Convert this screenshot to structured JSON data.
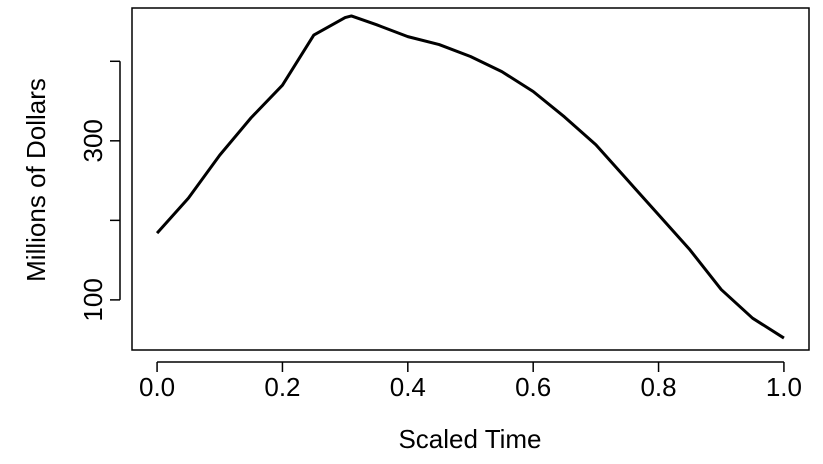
{
  "chart_data": {
    "type": "line",
    "xlabel": "Scaled Time",
    "ylabel": "Millions of Dollars",
    "x": [
      0,
      0.05,
      0.1,
      0.15,
      0.2,
      0.25,
      0.3,
      0.31,
      0.35,
      0.4,
      0.45,
      0.5,
      0.55,
      0.6,
      0.65,
      0.7,
      0.75,
      0.8,
      0.85,
      0.9,
      0.95,
      1.0
    ],
    "series": [
      {
        "color": "#000000",
        "values": [
          184,
          228,
          282,
          329,
          370,
          433,
          455,
          457,
          446,
          431,
          421,
          406,
          387,
          362,
          330,
          295,
          251,
          207,
          163,
          113,
          77,
          52
        ]
      }
    ],
    "xlim": [
      -0.04,
      1.04
    ],
    "xticks": [
      {
        "value": 0,
        "label": "0.0"
      },
      {
        "value": 0.2,
        "label": "0.2"
      },
      {
        "value": 0.4,
        "label": "0.4"
      },
      {
        "value": 0.6,
        "label": "0.6"
      },
      {
        "value": 0.8,
        "label": "0.8"
      },
      {
        "value": 1,
        "label": "1.0"
      }
    ],
    "ylim": [
      37,
      467
    ],
    "yticks": [
      100,
      300
    ],
    "yticks_unlabeled": [
      200,
      400
    ]
  }
}
